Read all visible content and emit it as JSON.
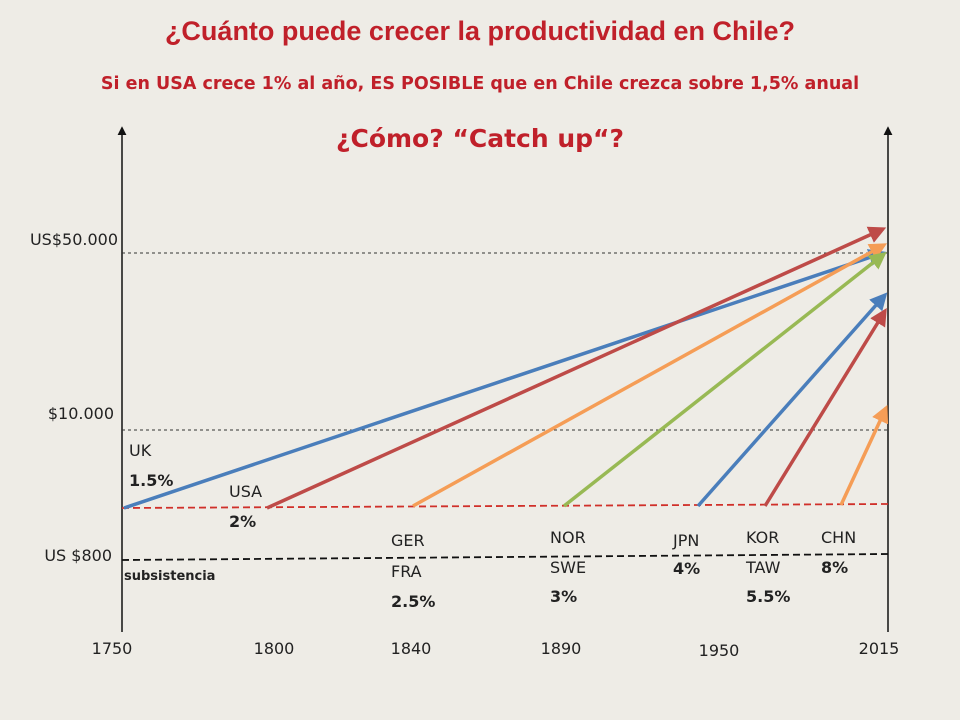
{
  "header": {
    "title": "¿Cuánto puede crecer la productividad en Chile?",
    "subtitle": "Si en USA crece 1% al año, ES POSIBLE que en Chile crezca sobre 1,5% anual",
    "question": "¿Cómo? “Catch up“?"
  },
  "y_labels": {
    "top": "US$50.000",
    "mid": "$10.000",
    "low": "US $800",
    "subsistence": "subsistencia"
  },
  "x_labels": [
    "1750",
    "1800",
    "1840",
    "1890",
    "1950",
    "2015"
  ],
  "countries": [
    {
      "name1": "UK",
      "name2": "",
      "rate": "1.5%",
      "color": "#4a7ebb"
    },
    {
      "name1": "USA",
      "name2": "",
      "rate": "2%",
      "color": "#be4b48"
    },
    {
      "name1": "GER",
      "name2": "FRA",
      "rate": "2.5%",
      "color": "#f59d56"
    },
    {
      "name1": "NOR",
      "name2": "SWE",
      "rate": "3%",
      "color": "#98b954"
    },
    {
      "name1": "JPN",
      "name2": "",
      "rate": "4%",
      "color": "#4a7ebb"
    },
    {
      "name1": "KOR",
      "name2": "TAW",
      "rate": "5.5%",
      "color": "#be4b48"
    },
    {
      "name1": "CHN",
      "name2": "",
      "rate": "8%",
      "color": "#f59d56"
    }
  ]
}
